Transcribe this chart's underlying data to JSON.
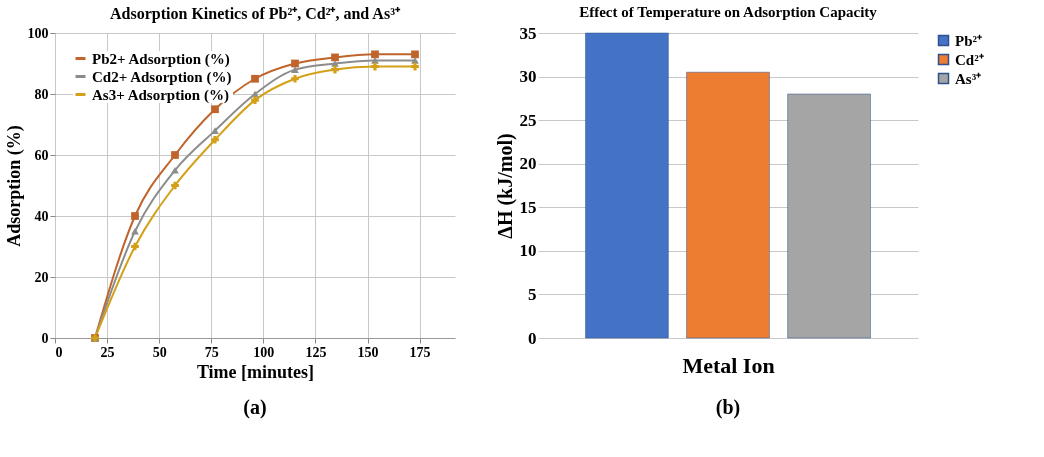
{
  "chart_data": [
    {
      "type": "line",
      "title": "Adsorption Kinetics of Pb²⁺, Cd²⁺, and As³⁺",
      "xlabel": "Time [minutes]",
      "ylabel": "Adsorption (%)",
      "x": [
        19.2,
        38.4,
        57.6,
        76.8,
        96,
        115.2,
        134.4,
        153.6,
        172.8
      ],
      "series": [
        {
          "name": "Pb2+ Adsorption (%)",
          "color": "#c0642c",
          "marker": "square",
          "values": [
            0,
            40,
            60,
            75,
            85,
            90,
            92,
            93,
            93
          ]
        },
        {
          "name": "Cd2+ Adsorption (%)",
          "color": "#8c8c8c",
          "marker": "triangle",
          "values": [
            0,
            35,
            55,
            68,
            80,
            88,
            90,
            91,
            91
          ]
        },
        {
          "name": "As3+ Adsorption (%)",
          "color": "#d4a017",
          "marker": "cross",
          "values": [
            0,
            30,
            50,
            65,
            78,
            85,
            88,
            89,
            89
          ]
        }
      ],
      "xlim": [
        0,
        192
      ],
      "xticks": [
        0,
        25,
        50,
        75,
        100,
        125,
        150,
        175
      ],
      "ylim": [
        0,
        100
      ],
      "yticks": [
        0,
        20,
        40,
        60,
        80,
        100
      ],
      "grid": true,
      "legend": "top left",
      "annotations": [
        "(a)"
      ]
    },
    {
      "type": "bar",
      "title": "Effect of Temperature on Adsorption Capacity",
      "xlabel": "Metal Ion",
      "ylabel": "ΔH (kJ/mol)",
      "categories": [
        null
      ],
      "series": [
        {
          "name": "Pb²⁺",
          "color": "#4472c4",
          "values": [
            35
          ]
        },
        {
          "name": "Cd²⁺",
          "color": "#ed7d31",
          "values": [
            30.5
          ]
        },
        {
          "name": "As³⁺",
          "color": "#a5a5a5",
          "values": [
            28
          ]
        }
      ],
      "ylim": [
        0,
        35
      ],
      "yticks": [
        0,
        5,
        10,
        15,
        20,
        25,
        30,
        35
      ],
      "grid": "y",
      "legend": "top right",
      "annotations": [
        "(b)"
      ]
    }
  ]
}
